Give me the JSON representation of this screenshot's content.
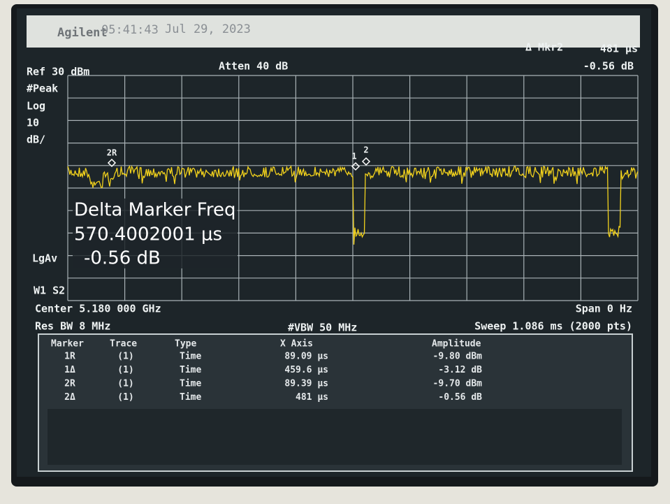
{
  "header": {
    "brand": "Agilent",
    "time": "05:41:43",
    "date": "Jul 29, 2023"
  },
  "marker_readout": {
    "label": "Δ Mkr2",
    "value": "481 μs",
    "amplitude": "-0.56 dB"
  },
  "settings": {
    "ref": "Ref 30 dBm",
    "atten": "Atten 40 dB",
    "detector": "#Peak",
    "scale_type": "Log",
    "scale": "10",
    "scale_unit": "dB/",
    "average": "LgAv",
    "trigger": "W1  S2"
  },
  "trace_markers": [
    "2R",
    "1",
    "2"
  ],
  "delta_box": {
    "title": "Delta Marker Freq",
    "value": "570.4002001 μs",
    "amplitude": "-0.56 dB"
  },
  "footer": {
    "center": "Center 5.180 000 GHz",
    "span": "Span 0 Hz",
    "rbw": "Res BW 8 MHz",
    "vbw": "#VBW 50 MHz",
    "sweep": "Sweep 1.086 ms (2000 pts)"
  },
  "table": {
    "columns": [
      "Marker",
      "Trace",
      "Type",
      "X Axis",
      "Amplitude"
    ],
    "rows": [
      [
        "1R",
        "(1)",
        "Time",
        "89.09 μs",
        "-9.80 dBm"
      ],
      [
        "1Δ",
        "(1)",
        "Time",
        "459.6 μs",
        "-3.12 dB"
      ],
      [
        "2R",
        "(1)",
        "Time",
        "89.39 μs",
        "-9.70 dBm"
      ],
      [
        "2Δ",
        "(1)",
        "Time",
        "481 μs",
        "-0.56 dB"
      ]
    ]
  }
}
